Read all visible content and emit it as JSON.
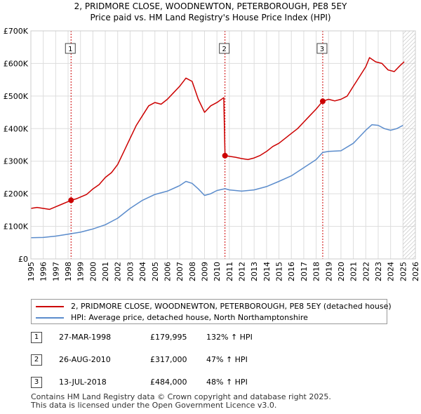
{
  "header": {
    "title_line1": "2, PRIDMORE CLOSE, WOODNEWTON, PETERBOROUGH, PE8 5EY",
    "title_line2": "Price paid vs. HM Land Registry's House Price Index (HPI)"
  },
  "colors": {
    "property": "#cc0000",
    "hpi": "#5b8ccc",
    "marker_line": "#cc0000",
    "hatch": "#bbbbbb"
  },
  "chart_data": {
    "type": "line",
    "title": "Price paid vs. HM Land Registry's House Price Index (HPI)",
    "xlabel": "",
    "ylabel": "",
    "xlim": [
      1995,
      2026
    ],
    "ylim": [
      0,
      700000
    ],
    "x_ticks": [
      1995,
      1996,
      1997,
      1998,
      1999,
      2000,
      2001,
      2002,
      2003,
      2004,
      2005,
      2006,
      2007,
      2008,
      2009,
      2010,
      2011,
      2012,
      2013,
      2014,
      2015,
      2016,
      2017,
      2018,
      2019,
      2020,
      2021,
      2022,
      2023,
      2024,
      2025,
      2026
    ],
    "y_ticks": [
      {
        "value": 0,
        "label": "£0"
      },
      {
        "value": 100000,
        "label": "£100K"
      },
      {
        "value": 200000,
        "label": "£200K"
      },
      {
        "value": 300000,
        "label": "£300K"
      },
      {
        "value": 400000,
        "label": "£400K"
      },
      {
        "value": 500000,
        "label": "£500K"
      },
      {
        "value": 600000,
        "label": "£600K"
      },
      {
        "value": 700000,
        "label": "£700K"
      }
    ],
    "hatch_from_year": 2025.0,
    "series": [
      {
        "name": "2, PRIDMORE CLOSE, WOODNEWTON, PETERBOROUGH, PE8 5EY (detached house)",
        "color": "#cc0000",
        "points": [
          [
            1995.0,
            155000
          ],
          [
            1995.5,
            158000
          ],
          [
            1996.0,
            155000
          ],
          [
            1996.5,
            152000
          ],
          [
            1997.0,
            160000
          ],
          [
            1997.5,
            168000
          ],
          [
            1998.0,
            176000
          ],
          [
            1998.24,
            179995
          ],
          [
            1998.7,
            185000
          ],
          [
            1999.0,
            190000
          ],
          [
            1999.5,
            198000
          ],
          [
            2000.0,
            215000
          ],
          [
            2000.5,
            228000
          ],
          [
            2001.0,
            250000
          ],
          [
            2001.5,
            265000
          ],
          [
            2002.0,
            290000
          ],
          [
            2002.5,
            330000
          ],
          [
            2003.0,
            370000
          ],
          [
            2003.5,
            410000
          ],
          [
            2004.0,
            440000
          ],
          [
            2004.5,
            470000
          ],
          [
            2005.0,
            480000
          ],
          [
            2005.5,
            475000
          ],
          [
            2006.0,
            490000
          ],
          [
            2006.5,
            510000
          ],
          [
            2007.0,
            530000
          ],
          [
            2007.5,
            555000
          ],
          [
            2008.0,
            545000
          ],
          [
            2008.5,
            490000
          ],
          [
            2009.0,
            450000
          ],
          [
            2009.5,
            470000
          ],
          [
            2010.0,
            480000
          ],
          [
            2010.55,
            495000
          ],
          [
            2010.65,
            317000
          ],
          [
            2011.0,
            315000
          ],
          [
            2011.5,
            312000
          ],
          [
            2012.0,
            308000
          ],
          [
            2012.5,
            305000
          ],
          [
            2013.0,
            310000
          ],
          [
            2013.5,
            318000
          ],
          [
            2014.0,
            330000
          ],
          [
            2014.5,
            345000
          ],
          [
            2015.0,
            355000
          ],
          [
            2015.5,
            370000
          ],
          [
            2016.0,
            385000
          ],
          [
            2016.5,
            400000
          ],
          [
            2017.0,
            420000
          ],
          [
            2017.5,
            440000
          ],
          [
            2018.0,
            460000
          ],
          [
            2018.53,
            484000
          ],
          [
            2019.0,
            490000
          ],
          [
            2019.5,
            485000
          ],
          [
            2020.0,
            490000
          ],
          [
            2020.5,
            500000
          ],
          [
            2021.0,
            530000
          ],
          [
            2021.5,
            560000
          ],
          [
            2022.0,
            590000
          ],
          [
            2022.3,
            618000
          ],
          [
            2022.8,
            605000
          ],
          [
            2023.3,
            600000
          ],
          [
            2023.8,
            580000
          ],
          [
            2024.3,
            575000
          ],
          [
            2024.8,
            595000
          ],
          [
            2025.1,
            605000
          ]
        ]
      },
      {
        "name": "HPI: Average price, detached house, North Northamptonshire",
        "color": "#5b8ccc",
        "points": [
          [
            1995.0,
            65000
          ],
          [
            1996.0,
            66000
          ],
          [
            1997.0,
            70000
          ],
          [
            1998.0,
            76000
          ],
          [
            1998.24,
            77500
          ],
          [
            1999.0,
            82000
          ],
          [
            2000.0,
            92000
          ],
          [
            2001.0,
            105000
          ],
          [
            2002.0,
            125000
          ],
          [
            2003.0,
            155000
          ],
          [
            2004.0,
            180000
          ],
          [
            2005.0,
            198000
          ],
          [
            2006.0,
            208000
          ],
          [
            2007.0,
            225000
          ],
          [
            2007.5,
            238000
          ],
          [
            2008.0,
            232000
          ],
          [
            2008.5,
            215000
          ],
          [
            2009.0,
            195000
          ],
          [
            2009.5,
            200000
          ],
          [
            2010.0,
            210000
          ],
          [
            2010.65,
            215500
          ],
          [
            2011.0,
            212000
          ],
          [
            2012.0,
            208000
          ],
          [
            2013.0,
            212000
          ],
          [
            2014.0,
            222000
          ],
          [
            2015.0,
            238000
          ],
          [
            2016.0,
            255000
          ],
          [
            2017.0,
            280000
          ],
          [
            2018.0,
            305000
          ],
          [
            2018.53,
            327000
          ],
          [
            2019.0,
            330000
          ],
          [
            2020.0,
            332000
          ],
          [
            2021.0,
            355000
          ],
          [
            2021.5,
            375000
          ],
          [
            2022.0,
            395000
          ],
          [
            2022.5,
            412000
          ],
          [
            2023.0,
            410000
          ],
          [
            2023.5,
            400000
          ],
          [
            2024.0,
            395000
          ],
          [
            2024.5,
            400000
          ],
          [
            2025.0,
            410000
          ]
        ]
      }
    ],
    "markers": [
      {
        "label": "1",
        "x": 1998.24,
        "y": 179995
      },
      {
        "label": "2",
        "x": 2010.65,
        "y": 317000
      },
      {
        "label": "3",
        "x": 2018.53,
        "y": 484000
      }
    ]
  },
  "legend": {
    "property_label": "2, PRIDMORE CLOSE, WOODNEWTON, PETERBOROUGH, PE8 5EY (detached house)",
    "hpi_label": "HPI: Average price, detached house, North Northamptonshire"
  },
  "transactions": [
    {
      "num": "1",
      "date": "27-MAR-1998",
      "price": "£179,995",
      "hpi": "132% ↑ HPI"
    },
    {
      "num": "2",
      "date": "26-AUG-2010",
      "price": "£317,000",
      "hpi": "47% ↑ HPI"
    },
    {
      "num": "3",
      "date": "13-JUL-2018",
      "price": "£484,000",
      "hpi": "48% ↑ HPI"
    }
  ],
  "footer": {
    "line1": "Contains HM Land Registry data © Crown copyright and database right 2025.",
    "line2": "This data is licensed under the Open Government Licence v3.0."
  }
}
